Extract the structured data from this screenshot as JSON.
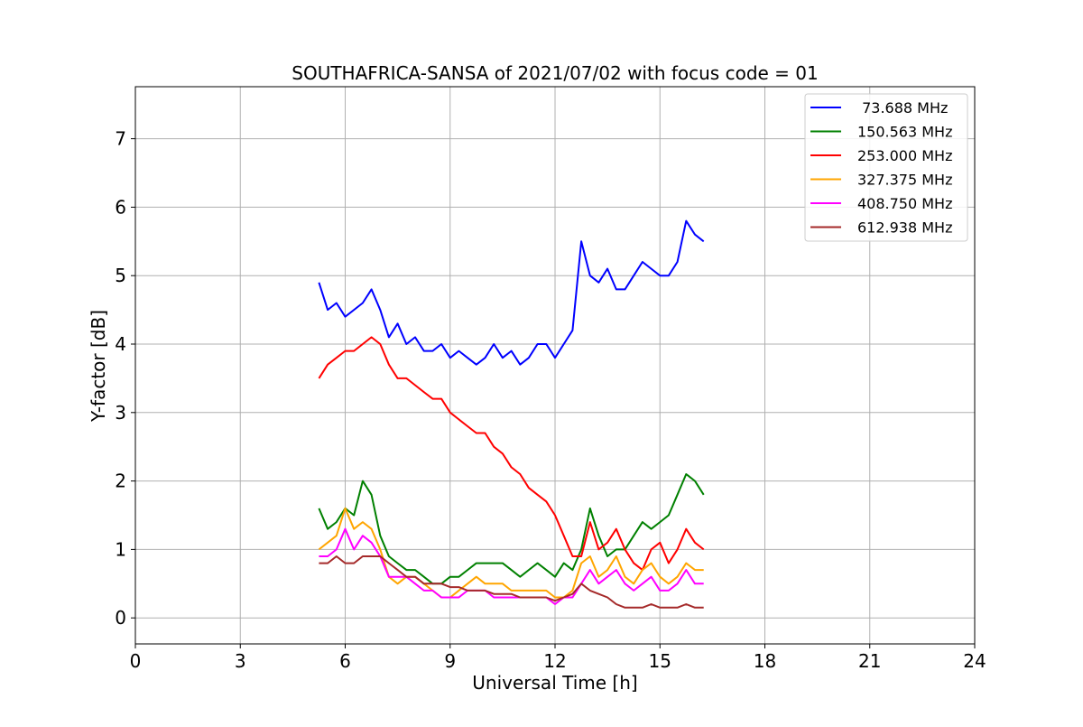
{
  "chart_data": {
    "type": "line",
    "title": "SOUTHAFRICA-SANSA of 2021/07/02 with focus code = 01",
    "xlabel": "Universal Time [h]",
    "ylabel": "Y-factor [dB]",
    "xlim": [
      0,
      24
    ],
    "ylim": [
      -0.38,
      7.76
    ],
    "xticks": [
      0,
      3,
      6,
      9,
      12,
      15,
      18,
      21,
      24
    ],
    "yticks": [
      0,
      1,
      2,
      3,
      4,
      5,
      6,
      7
    ],
    "xtick_labels": [
      "0",
      "3",
      "6",
      "9",
      "12",
      "15",
      "18",
      "21",
      "24"
    ],
    "ytick_labels": [
      "0",
      "1",
      "2",
      "3",
      "4",
      "5",
      "6",
      "7"
    ],
    "grid": true,
    "legend_position": "upper right",
    "series": [
      {
        "name": " 73.688 MHz",
        "color": "#0000ff",
        "x": [
          5.25,
          5.5,
          5.75,
          6.0,
          6.25,
          6.5,
          6.75,
          7.0,
          7.25,
          7.5,
          7.75,
          8.0,
          8.25,
          8.5,
          8.75,
          9.0,
          9.25,
          9.5,
          9.75,
          10.0,
          10.25,
          10.5,
          10.75,
          11.0,
          11.25,
          11.5,
          11.75,
          12.0,
          12.25,
          12.5,
          12.75,
          13.0,
          13.25,
          13.5,
          13.75,
          14.0,
          14.25,
          14.5,
          14.75,
          15.0,
          15.25,
          15.5,
          15.75,
          16.0,
          16.25
        ],
        "values": [
          4.9,
          4.5,
          4.6,
          4.4,
          4.5,
          4.6,
          4.8,
          4.5,
          4.1,
          4.3,
          4.0,
          4.1,
          3.9,
          3.9,
          4.0,
          3.8,
          3.9,
          3.8,
          3.7,
          3.8,
          4.0,
          3.8,
          3.9,
          3.7,
          3.8,
          4.0,
          4.0,
          3.8,
          4.0,
          4.2,
          5.5,
          5.0,
          4.9,
          5.1,
          4.8,
          4.8,
          5.0,
          5.2,
          5.1,
          5.0,
          5.0,
          5.2,
          5.8,
          5.6,
          5.5
        ]
      },
      {
        "name": "150.563 MHz",
        "color": "#008000",
        "x": [
          5.25,
          5.5,
          5.75,
          6.0,
          6.25,
          6.5,
          6.75,
          7.0,
          7.25,
          7.5,
          7.75,
          8.0,
          8.25,
          8.5,
          8.75,
          9.0,
          9.25,
          9.5,
          9.75,
          10.0,
          10.25,
          10.5,
          10.75,
          11.0,
          11.25,
          11.5,
          11.75,
          12.0,
          12.25,
          12.5,
          12.75,
          13.0,
          13.25,
          13.5,
          13.75,
          14.0,
          14.25,
          14.5,
          14.75,
          15.0,
          15.25,
          15.5,
          15.75,
          16.0,
          16.25
        ],
        "values": [
          1.6,
          1.3,
          1.4,
          1.6,
          1.5,
          2.0,
          1.8,
          1.2,
          0.9,
          0.8,
          0.7,
          0.7,
          0.6,
          0.5,
          0.5,
          0.6,
          0.6,
          0.7,
          0.8,
          0.8,
          0.8,
          0.8,
          0.7,
          0.6,
          0.7,
          0.8,
          0.7,
          0.6,
          0.8,
          0.7,
          1.0,
          1.6,
          1.2,
          0.9,
          1.0,
          1.0,
          1.2,
          1.4,
          1.3,
          1.4,
          1.5,
          1.8,
          2.1,
          2.0,
          1.8
        ]
      },
      {
        "name": "253.000 MHz",
        "color": "#ff0000",
        "x": [
          5.25,
          5.5,
          5.75,
          6.0,
          6.25,
          6.5,
          6.75,
          7.0,
          7.25,
          7.5,
          7.75,
          8.0,
          8.25,
          8.5,
          8.75,
          9.0,
          9.25,
          9.5,
          9.75,
          10.0,
          10.25,
          10.5,
          10.75,
          11.0,
          11.25,
          11.5,
          11.75,
          12.0,
          12.25,
          12.5,
          12.75,
          13.0,
          13.25,
          13.5,
          13.75,
          14.0,
          14.25,
          14.5,
          14.75,
          15.0,
          15.25,
          15.5,
          15.75,
          16.0,
          16.25
        ],
        "values": [
          3.5,
          3.7,
          3.8,
          3.9,
          3.9,
          4.0,
          4.1,
          4.0,
          3.7,
          3.5,
          3.5,
          3.4,
          3.3,
          3.2,
          3.2,
          3.0,
          2.9,
          2.8,
          2.7,
          2.7,
          2.5,
          2.4,
          2.2,
          2.1,
          1.9,
          1.8,
          1.7,
          1.5,
          1.2,
          0.9,
          0.9,
          1.4,
          1.0,
          1.1,
          1.3,
          1.0,
          0.8,
          0.7,
          1.0,
          1.1,
          0.8,
          1.0,
          1.3,
          1.1,
          1.0
        ]
      },
      {
        "name": "327.375 MHz",
        "color": "#ffa500",
        "x": [
          5.25,
          5.5,
          5.75,
          6.0,
          6.25,
          6.5,
          6.75,
          7.0,
          7.25,
          7.5,
          7.75,
          8.0,
          8.25,
          8.5,
          8.75,
          9.0,
          9.25,
          9.5,
          9.75,
          10.0,
          10.25,
          10.5,
          10.75,
          11.0,
          11.25,
          11.5,
          11.75,
          12.0,
          12.25,
          12.5,
          12.75,
          13.0,
          13.25,
          13.5,
          13.75,
          14.0,
          14.25,
          14.5,
          14.75,
          15.0,
          15.25,
          15.5,
          15.75,
          16.0,
          16.25
        ],
        "values": [
          1.0,
          1.1,
          1.2,
          1.6,
          1.3,
          1.4,
          1.3,
          1.0,
          0.6,
          0.5,
          0.6,
          0.6,
          0.5,
          0.4,
          0.3,
          0.3,
          0.4,
          0.5,
          0.6,
          0.5,
          0.5,
          0.5,
          0.4,
          0.4,
          0.4,
          0.4,
          0.4,
          0.3,
          0.3,
          0.4,
          0.8,
          0.9,
          0.6,
          0.7,
          0.9,
          0.6,
          0.5,
          0.7,
          0.8,
          0.6,
          0.5,
          0.6,
          0.8,
          0.7,
          0.7
        ]
      },
      {
        "name": "408.750 MHz",
        "color": "#ff00ff",
        "x": [
          5.25,
          5.5,
          5.75,
          6.0,
          6.25,
          6.5,
          6.75,
          7.0,
          7.25,
          7.5,
          7.75,
          8.0,
          8.25,
          8.5,
          8.75,
          9.0,
          9.25,
          9.5,
          9.75,
          10.0,
          10.25,
          10.5,
          10.75,
          11.0,
          11.25,
          11.5,
          11.75,
          12.0,
          12.25,
          12.5,
          12.75,
          13.0,
          13.25,
          13.5,
          13.75,
          14.0,
          14.25,
          14.5,
          14.75,
          15.0,
          15.25,
          15.5,
          15.75,
          16.0,
          16.25
        ],
        "values": [
          0.9,
          0.9,
          1.0,
          1.3,
          1.0,
          1.2,
          1.1,
          0.9,
          0.6,
          0.6,
          0.6,
          0.5,
          0.4,
          0.4,
          0.3,
          0.3,
          0.3,
          0.4,
          0.4,
          0.4,
          0.3,
          0.3,
          0.3,
          0.3,
          0.3,
          0.3,
          0.3,
          0.2,
          0.3,
          0.3,
          0.5,
          0.7,
          0.5,
          0.6,
          0.7,
          0.5,
          0.4,
          0.5,
          0.6,
          0.4,
          0.4,
          0.5,
          0.7,
          0.5,
          0.5
        ]
      },
      {
        "name": "612.938 MHz",
        "color": "#a52a2a",
        "x": [
          5.25,
          5.5,
          5.75,
          6.0,
          6.25,
          6.5,
          6.75,
          7.0,
          7.25,
          7.5,
          7.75,
          8.0,
          8.25,
          8.5,
          8.75,
          9.0,
          9.25,
          9.5,
          9.75,
          10.0,
          10.25,
          10.5,
          10.75,
          11.0,
          11.25,
          11.5,
          11.75,
          12.0,
          12.25,
          12.5,
          12.75,
          13.0,
          13.25,
          13.5,
          13.75,
          14.0,
          14.25,
          14.5,
          14.75,
          15.0,
          15.25,
          15.5,
          15.75,
          16.0,
          16.25
        ],
        "values": [
          0.8,
          0.8,
          0.9,
          0.8,
          0.8,
          0.9,
          0.9,
          0.9,
          0.8,
          0.7,
          0.6,
          0.6,
          0.5,
          0.5,
          0.5,
          0.45,
          0.45,
          0.4,
          0.4,
          0.4,
          0.35,
          0.35,
          0.35,
          0.3,
          0.3,
          0.3,
          0.3,
          0.25,
          0.3,
          0.35,
          0.5,
          0.4,
          0.35,
          0.3,
          0.2,
          0.15,
          0.15,
          0.15,
          0.2,
          0.15,
          0.15,
          0.15,
          0.2,
          0.15,
          0.15
        ]
      }
    ]
  }
}
